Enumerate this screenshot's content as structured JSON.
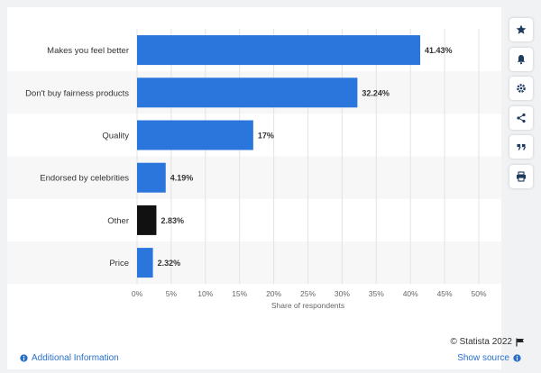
{
  "chart_data": {
    "type": "bar",
    "orientation": "horizontal",
    "categories": [
      "Makes you feel better",
      "Don't buy fairness products",
      "Quality",
      "Endorsed by celebrities",
      "Other",
      "Price"
    ],
    "values": [
      41.43,
      32.24,
      17,
      4.19,
      2.83,
      2.32
    ],
    "value_labels": [
      "41.43%",
      "32.24%",
      "17%",
      "4.19%",
      "2.83%",
      "2.32%"
    ],
    "bar_colors": [
      "#2a76dd",
      "#2a76dd",
      "#2a76dd",
      "#2a76dd",
      "#111111",
      "#2a76dd"
    ],
    "xlabel": "Share of respondents",
    "xlim": [
      0,
      50
    ],
    "xticks": [
      0,
      5,
      10,
      15,
      20,
      25,
      30,
      35,
      40,
      45,
      50
    ],
    "xtick_labels": [
      "0%",
      "5%",
      "10%",
      "15%",
      "20%",
      "25%",
      "30%",
      "35%",
      "40%",
      "45%",
      "50%"
    ],
    "grid": "vertical",
    "band_colors": [
      "#ffffff",
      "#f7f7f7"
    ]
  },
  "toolbar": {
    "buttons": [
      "star-icon",
      "bell-icon",
      "gear-icon",
      "share-icon",
      "quote-icon",
      "print-icon"
    ]
  },
  "footer": {
    "copyright": "© Statista 2022",
    "additional_info": "Additional Information",
    "show_source": "Show source"
  },
  "colors": {
    "bar": "#2a76dd",
    "bar_other": "#111111",
    "link": "#2a6fc9"
  }
}
